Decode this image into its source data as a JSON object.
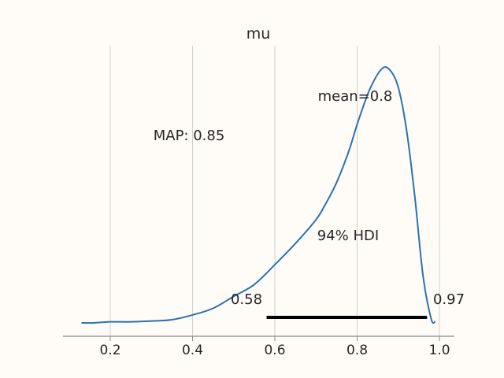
{
  "chart_data": {
    "type": "line",
    "title": "mu",
    "xlabel": "",
    "ylabel": "",
    "xlim": [
      0.1,
      1.04
    ],
    "ylim": [
      0,
      1
    ],
    "grid": "vertical",
    "line_color": "#2a72b0",
    "x_ticks": [
      0.2,
      0.4,
      0.6,
      0.8,
      1.0
    ],
    "x_tick_labels": [
      "0.2",
      "0.4",
      "0.6",
      "0.8",
      "1.0"
    ],
    "density": {
      "x": [
        0.13,
        0.16,
        0.2,
        0.25,
        0.3,
        0.35,
        0.4,
        0.45,
        0.5,
        0.55,
        0.6,
        0.65,
        0.7,
        0.72,
        0.75,
        0.78,
        0.8,
        0.83,
        0.86,
        0.88,
        0.9,
        0.92,
        0.94,
        0.96,
        0.98,
        0.99
      ],
      "y": [
        0.0,
        0.0,
        0.004,
        0.004,
        0.007,
        0.012,
        0.03,
        0.055,
        0.1,
        0.145,
        0.22,
        0.3,
        0.39,
        0.44,
        0.53,
        0.65,
        0.75,
        0.88,
        0.96,
        0.955,
        0.89,
        0.73,
        0.48,
        0.18,
        0.015,
        0.005
      ]
    },
    "annotations": {
      "mean": "mean=0.8",
      "map": "MAP: 0.85",
      "hdi": "94% HDI",
      "hdi_low": "0.58",
      "hdi_high": "0.97"
    },
    "hdi": [
      0.58,
      0.97
    ]
  }
}
